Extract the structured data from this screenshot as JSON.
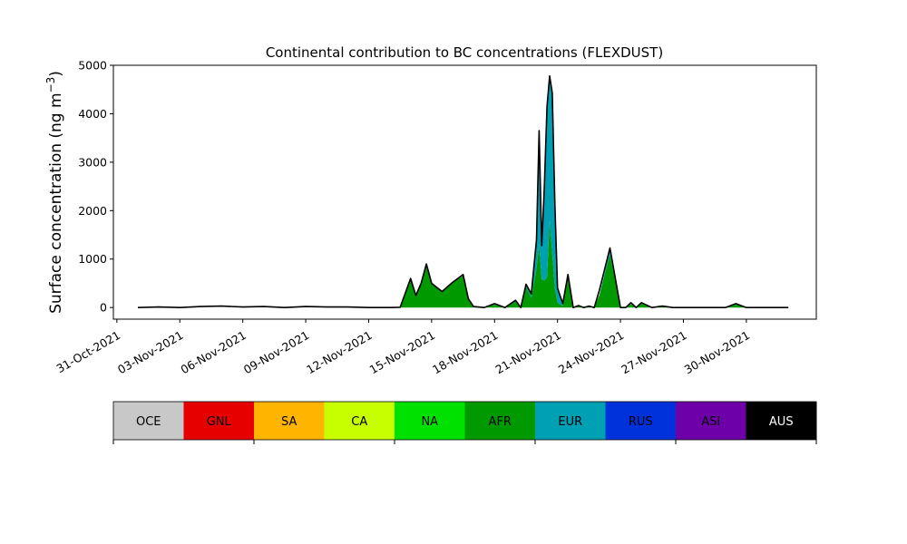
{
  "chart_data": {
    "type": "area",
    "title": "Continental contribution to BC concentrations (FLEXDUST)",
    "ylabel_main": "Surface concentration (ng m",
    "ylabel_sup": "−3",
    "ylabel_close": ")",
    "xlabel": "",
    "x_axis_type": "date",
    "xlim": [
      "2021-10-30T20:00",
      "2021-12-03T08:00"
    ],
    "ylim": [
      -240,
      5000
    ],
    "grid": false,
    "x_ticks": [
      {
        "date": "2021-10-31",
        "label": "31-Oct-2021"
      },
      {
        "date": "2021-11-03",
        "label": "03-Nov-2021"
      },
      {
        "date": "2021-11-06",
        "label": "06-Nov-2021"
      },
      {
        "date": "2021-11-09",
        "label": "09-Nov-2021"
      },
      {
        "date": "2021-11-12",
        "label": "12-Nov-2021"
      },
      {
        "date": "2021-11-15",
        "label": "15-Nov-2021"
      },
      {
        "date": "2021-11-18",
        "label": "18-Nov-2021"
      },
      {
        "date": "2021-11-21",
        "label": "21-Nov-2021"
      },
      {
        "date": "2021-11-24",
        "label": "24-Nov-2021"
      },
      {
        "date": "2021-11-27",
        "label": "27-Nov-2021"
      },
      {
        "date": "2021-11-30",
        "label": "30-Nov-2021"
      }
    ],
    "y_ticks": [
      0,
      1000,
      2000,
      3000,
      4000,
      5000
    ],
    "dates": [
      "2021-11-01T00:00",
      "2021-11-02T00:00",
      "2021-11-03T00:00",
      "2021-11-04T00:00",
      "2021-11-05T00:00",
      "2021-11-06T00:00",
      "2021-11-07T00:00",
      "2021-11-08T00:00",
      "2021-11-09T00:00",
      "2021-11-10T00:00",
      "2021-11-11T00:00",
      "2021-11-12T00:00",
      "2021-11-13T00:00",
      "2021-11-13T12:00",
      "2021-11-14T00:00",
      "2021-11-14T06:00",
      "2021-11-14T12:00",
      "2021-11-14T18:00",
      "2021-11-15T00:00",
      "2021-11-15T12:00",
      "2021-11-16T00:00",
      "2021-11-16T12:00",
      "2021-11-16T18:00",
      "2021-11-17T00:00",
      "2021-11-17T12:00",
      "2021-11-18T00:00",
      "2021-11-18T12:00",
      "2021-11-19T00:00",
      "2021-11-19T06:00",
      "2021-11-19T12:00",
      "2021-11-19T18:00",
      "2021-11-20T00:00",
      "2021-11-20T03:00",
      "2021-11-20T06:00",
      "2021-11-20T09:00",
      "2021-11-20T12:00",
      "2021-11-20T15:00",
      "2021-11-20T18:00",
      "2021-11-20T21:00",
      "2021-11-21T00:00",
      "2021-11-21T06:00",
      "2021-11-21T12:00",
      "2021-11-21T18:00",
      "2021-11-22T00:00",
      "2021-11-22T06:00",
      "2021-11-22T12:00",
      "2021-11-22T18:00",
      "2021-11-23T00:00",
      "2021-11-23T12:00",
      "2021-11-24T00:00",
      "2021-11-24T06:00",
      "2021-11-24T12:00",
      "2021-11-24T18:00",
      "2021-11-25T00:00",
      "2021-11-25T12:00",
      "2021-11-26T00:00",
      "2021-11-26T12:00",
      "2021-11-27T00:00",
      "2021-11-28T00:00",
      "2021-11-29T00:00",
      "2021-11-29T12:00",
      "2021-11-30T00:00",
      "2021-12-01T00:00",
      "2021-12-02T00:00"
    ],
    "series": [
      {
        "name": "AFR",
        "color": "#009a00",
        "values": [
          0,
          0,
          0,
          0,
          0,
          0,
          0,
          0,
          0,
          0,
          0,
          0,
          0,
          5,
          600,
          250,
          500,
          870,
          500,
          330,
          520,
          650,
          180,
          20,
          0,
          60,
          0,
          120,
          0,
          420,
          200,
          800,
          1300,
          580,
          560,
          620,
          1800,
          1100,
          400,
          100,
          30,
          680,
          0,
          30,
          0,
          20,
          0,
          260,
          1100,
          0,
          0,
          70,
          0,
          80,
          0,
          25,
          0,
          0,
          0,
          0,
          60,
          0,
          0,
          0
        ]
      },
      {
        "name": "EUR",
        "color": "#00a0b4",
        "values": [
          0,
          0,
          0,
          0,
          0,
          0,
          0,
          0,
          0,
          0,
          0,
          0,
          0,
          0,
          0,
          0,
          0,
          0,
          0,
          0,
          0,
          0,
          0,
          0,
          0,
          0,
          0,
          30,
          0,
          50,
          80,
          600,
          2300,
          600,
          1900,
          3400,
          2900,
          3300,
          1700,
          300,
          50,
          0,
          0,
          0,
          0,
          0,
          0,
          0,
          100,
          0,
          0,
          0,
          0,
          0,
          0,
          0,
          0,
          0,
          0,
          0,
          20,
          0,
          0,
          0
        ]
      },
      {
        "name": "RUS",
        "color": "#0032dc",
        "values": [
          0,
          0,
          0,
          0,
          0,
          0,
          0,
          0,
          0,
          0,
          0,
          0,
          0,
          0,
          0,
          0,
          0,
          0,
          0,
          0,
          0,
          0,
          0,
          0,
          0,
          0,
          0,
          0,
          0,
          0,
          0,
          0,
          0,
          100,
          50,
          120,
          50,
          30,
          20,
          0,
          0,
          0,
          0,
          0,
          0,
          0,
          0,
          0,
          0,
          0,
          0,
          0,
          0,
          0,
          0,
          0,
          0,
          0,
          0,
          0,
          0,
          0,
          0,
          0
        ]
      }
    ],
    "total": {
      "name": "total",
      "color": "#000000",
      "values": [
        0,
        10,
        0,
        20,
        30,
        10,
        20,
        0,
        20,
        10,
        10,
        0,
        0,
        5,
        600,
        250,
        500,
        900,
        500,
        330,
        520,
        680,
        180,
        20,
        0,
        80,
        0,
        150,
        0,
        480,
        280,
        1400,
        3650,
        1280,
        2510,
        4150,
        4780,
        4430,
        2120,
        400,
        80,
        680,
        0,
        40,
        0,
        30,
        0,
        360,
        1230,
        0,
        0,
        100,
        0,
        100,
        0,
        30,
        0,
        0,
        0,
        0,
        80,
        0,
        0,
        0
      ]
    },
    "legend": {
      "placement": "bottom",
      "items": [
        {
          "label": "OCE",
          "color": "#c8c8c8",
          "text_color": "#000000"
        },
        {
          "label": "GNL",
          "color": "#e60000",
          "text_color": "#000000"
        },
        {
          "label": "SA",
          "color": "#ffb400",
          "text_color": "#000000"
        },
        {
          "label": "CA",
          "color": "#c8ff00",
          "text_color": "#000000"
        },
        {
          "label": "NA",
          "color": "#00e100",
          "text_color": "#000000"
        },
        {
          "label": "AFR",
          "color": "#009a00",
          "text_color": "#000000"
        },
        {
          "label": "EUR",
          "color": "#00a0b4",
          "text_color": "#000000"
        },
        {
          "label": "RUS",
          "color": "#0032dc",
          "text_color": "#000000"
        },
        {
          "label": "ASI",
          "color": "#6e00aa",
          "text_color": "#000000"
        },
        {
          "label": "AUS",
          "color": "#000000",
          "text_color": "#ffffff"
        }
      ]
    }
  }
}
